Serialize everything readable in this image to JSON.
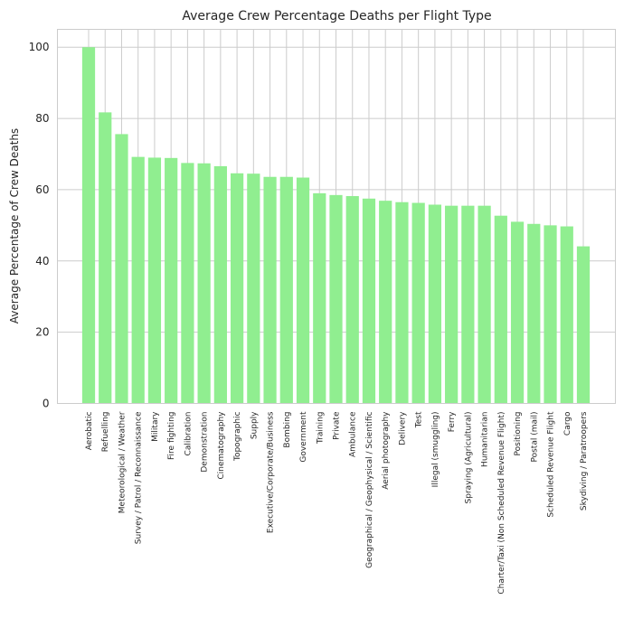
{
  "chart_data": {
    "type": "bar",
    "title": "Average Crew Percentage Deaths per Flight Type",
    "xlabel": "",
    "ylabel": "Average Percentage of Crew Deaths",
    "ylim": [
      0,
      105
    ],
    "yticks": [
      0,
      20,
      40,
      60,
      80,
      100
    ],
    "grid": true,
    "bar_color": "#90ee90",
    "categories": [
      "Aerobatic",
      "Refuelling",
      "Meteorological / Weather",
      "Survey / Patrol / Reconnaissance",
      "Military",
      "Fire fighting",
      "Calibration",
      "Demonstration",
      "Cinematography",
      "Topographic",
      "Supply",
      "Executive/Corporate/Business",
      "Bombing",
      "Government",
      "Training",
      "Private",
      "Ambulance",
      "Geographical / Geophysical / Scientific",
      "Aerial photography",
      "Delivery",
      "Test",
      "Illegal (smuggling)",
      "Ferry",
      "Spraying (Agricultural)",
      "Humanitarian",
      "Charter/Taxi (Non Scheduled Revenue Flight)",
      "Positioning",
      "Postal (mail)",
      "Scheduled Revenue Flight",
      "Cargo",
      "Skydiving / Paratroopers"
    ],
    "values": [
      100,
      81.7,
      75.6,
      69.2,
      69.0,
      68.9,
      67.5,
      67.4,
      66.6,
      64.6,
      64.5,
      63.6,
      63.6,
      63.4,
      59.0,
      58.5,
      58.2,
      57.5,
      56.9,
      56.5,
      56.3,
      55.8,
      55.5,
      55.5,
      55.5,
      52.7,
      51.0,
      50.4,
      50.0,
      49.7,
      44.1
    ]
  }
}
